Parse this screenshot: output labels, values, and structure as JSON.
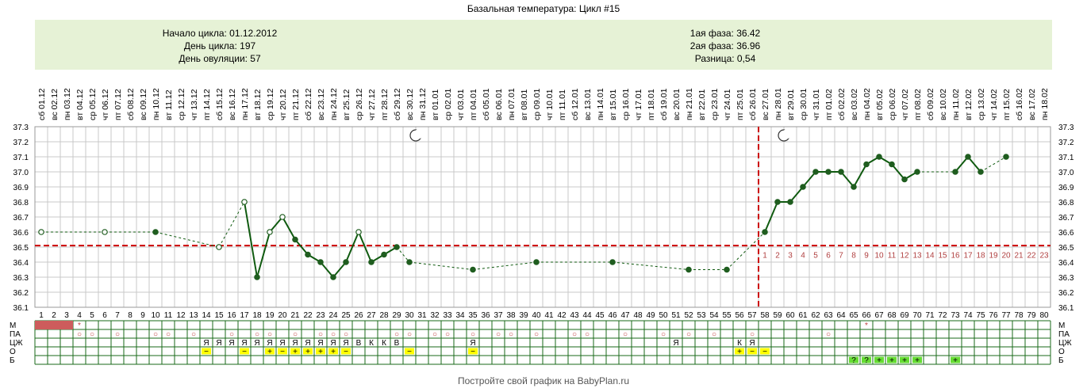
{
  "title": "Базальная температура: Цикл #15",
  "info": {
    "cycle_start": "Начало цикла: 01.12.2012",
    "cycle_day": "День цикла: 197",
    "ovulation_day": "День овуляции: 57",
    "phase1": "1ая фаза: 36.42",
    "phase2": "2ая фаза: 36.96",
    "difference": "Разница: 0,54"
  },
  "footer": "Постройте свой график на BabyPlan.ru",
  "colors": {
    "info_bg": "#e6f2d6",
    "grid": "#c8c8c8",
    "line": "#0f5a0f",
    "marker": "#1f5d1f",
    "coverline": "#cc0000",
    "post_ovulation_day_numbers": "#b04040",
    "menstruation_fill": "#cd5c5c",
    "yellow_cell": "#ffff00",
    "green_cell": "#66dd33",
    "row_border": "#1a6a1a"
  },
  "chart_data": {
    "type": "line",
    "x_days": [
      1,
      80
    ],
    "date_labels": [
      "сб 01.12",
      "вс 02.12",
      "пн 03.12",
      "вт 04.12",
      "ср 05.12",
      "чт 06.12",
      "пт 07.12",
      "сб 08.12",
      "вс 09.12",
      "пн 10.12",
      "вт 11.12",
      "ср 12.12",
      "чт 13.12",
      "пт 14.12",
      "сб 15.12",
      "вс 16.12",
      "пн 17.12",
      "вт 18.12",
      "ср 19.12",
      "чт 20.12",
      "пт 21.12",
      "сб 22.12",
      "вс 23.12",
      "пн 24.12",
      "вт 25.12",
      "ср 26.12",
      "чт 27.12",
      "пт 28.12",
      "сб 29.12",
      "вс 30.12",
      "пн 31.12",
      "вт 01.01",
      "ср 02.01",
      "чт 03.01",
      "пт 04.01",
      "сб 05.01",
      "вс 06.01",
      "пн 07.01",
      "вт 08.01",
      "ср 09.01",
      "чт 10.01",
      "пт 11.01",
      "сб 12.01",
      "вс 13.01",
      "пн 14.01",
      "вт 15.01",
      "ср 16.01",
      "чт 17.01",
      "пт 18.01",
      "сб 19.01",
      "вс 20.01",
      "пн 21.01",
      "вт 22.01",
      "ср 23.01",
      "чт 24.01",
      "пт 25.01",
      "сб 26.01",
      "вс 27.01",
      "пн 28.01",
      "вт 29.01",
      "ср 30.01",
      "чт 31.01",
      "пт 01.02",
      "сб 02.02",
      "вс 03.02",
      "пн 04.02",
      "вт 05.02",
      "ср 06.02",
      "чт 07.02",
      "пт 08.02",
      "сб 09.02",
      "вс 10.02",
      "пн 11.02",
      "вт 12.02",
      "ср 13.02",
      "чт 14.02",
      "пт 15.02",
      "сб 16.02",
      "вс 17.02",
      "пн 18.02"
    ],
    "y_ticks": [
      "36.1",
      "36.2",
      "36.3",
      "36.4",
      "36.5",
      "36.6",
      "36.7",
      "36.8",
      "36.9",
      "37.0",
      "37.1",
      "37.2",
      "37.3"
    ],
    "ylim": [
      36.1,
      37.3
    ],
    "coverline": 36.51,
    "ovulation_day": 57,
    "moon_days": [
      30,
      59
    ],
    "points": [
      {
        "x": 1,
        "y": 36.6,
        "open": true
      },
      {
        "x": 6,
        "y": 36.6,
        "open": true
      },
      {
        "x": 10,
        "y": 36.6,
        "open": false
      },
      {
        "x": 15,
        "y": 36.5,
        "open": true
      },
      {
        "x": 17,
        "y": 36.8,
        "open": true
      },
      {
        "x": 18,
        "y": 36.3,
        "open": false
      },
      {
        "x": 19,
        "y": 36.6,
        "open": true
      },
      {
        "x": 20,
        "y": 36.7,
        "open": true
      },
      {
        "x": 21,
        "y": 36.55,
        "open": false
      },
      {
        "x": 22,
        "y": 36.45,
        "open": false
      },
      {
        "x": 23,
        "y": 36.4,
        "open": false
      },
      {
        "x": 24,
        "y": 36.3,
        "open": false
      },
      {
        "x": 25,
        "y": 36.4,
        "open": false
      },
      {
        "x": 26,
        "y": 36.6,
        "open": true
      },
      {
        "x": 27,
        "y": 36.4,
        "open": false
      },
      {
        "x": 28,
        "y": 36.45,
        "open": false
      },
      {
        "x": 29,
        "y": 36.5,
        "open": false
      },
      {
        "x": 30,
        "y": 36.4,
        "open": false
      },
      {
        "x": 35,
        "y": 36.35,
        "open": false
      },
      {
        "x": 40,
        "y": 36.4,
        "open": false
      },
      {
        "x": 46,
        "y": 36.4,
        "open": false
      },
      {
        "x": 52,
        "y": 36.35,
        "open": false
      },
      {
        "x": 55,
        "y": 36.35,
        "open": false
      },
      {
        "x": 58,
        "y": 36.6,
        "open": false
      },
      {
        "x": 59,
        "y": 36.8,
        "open": false
      },
      {
        "x": 60,
        "y": 36.8,
        "open": false
      },
      {
        "x": 61,
        "y": 36.9,
        "open": false
      },
      {
        "x": 62,
        "y": 37.0,
        "open": false
      },
      {
        "x": 63,
        "y": 37.0,
        "open": false
      },
      {
        "x": 64,
        "y": 37.0,
        "open": false
      },
      {
        "x": 65,
        "y": 36.9,
        "open": false
      },
      {
        "x": 66,
        "y": 37.05,
        "open": false
      },
      {
        "x": 67,
        "y": 37.1,
        "open": false
      },
      {
        "x": 68,
        "y": 37.05,
        "open": false
      },
      {
        "x": 69,
        "y": 36.95,
        "open": false
      },
      {
        "x": 70,
        "y": 37.0,
        "open": false
      },
      {
        "x": 73,
        "y": 37.0,
        "open": false
      },
      {
        "x": 74,
        "y": 37.1,
        "open": false
      },
      {
        "x": 75,
        "y": 37.0,
        "open": false
      },
      {
        "x": 77,
        "y": 37.1,
        "open": false
      }
    ],
    "solid_segments": [
      [
        17,
        18
      ],
      [
        18,
        19
      ],
      [
        19,
        20
      ],
      [
        20,
        21
      ],
      [
        21,
        22
      ],
      [
        22,
        23
      ],
      [
        23,
        24
      ],
      [
        24,
        25
      ],
      [
        25,
        26
      ],
      [
        26,
        27
      ],
      [
        27,
        28
      ],
      [
        28,
        29
      ],
      [
        58,
        59
      ],
      [
        59,
        60
      ],
      [
        60,
        61
      ],
      [
        61,
        62
      ],
      [
        62,
        63
      ],
      [
        63,
        64
      ],
      [
        64,
        65
      ],
      [
        65,
        66
      ],
      [
        66,
        67
      ],
      [
        67,
        68
      ],
      [
        68,
        69
      ],
      [
        69,
        70
      ],
      [
        73,
        74
      ],
      [
        74,
        75
      ]
    ],
    "post_ovulation_day_numbers": [
      "1",
      "2",
      "3",
      "4",
      "5",
      "6",
      "7",
      "8",
      "9",
      "10",
      "11",
      "12",
      "13",
      "14",
      "15",
      "16",
      "17",
      "18",
      "19",
      "20",
      "21",
      "22",
      "23"
    ],
    "indicator_rows": {
      "labels": [
        "М",
        "ПА",
        "ЦЖ",
        "О",
        "Б"
      ],
      "menstruation_days": [
        1,
        2,
        3
      ],
      "cells": [
        {
          "row": 0,
          "day": 4,
          "text": "*",
          "color": "#c04040"
        },
        {
          "row": 0,
          "day": 66,
          "text": "*",
          "color": "#c04040"
        },
        {
          "row": 1,
          "day": 4,
          "text": "○",
          "color": "#c04040"
        },
        {
          "row": 1,
          "day": 5,
          "text": "○",
          "color": "#c04040"
        },
        {
          "row": 1,
          "day": 7,
          "text": "○",
          "color": "#c04040"
        },
        {
          "row": 1,
          "day": 10,
          "text": "○",
          "color": "#c04040"
        },
        {
          "row": 1,
          "day": 11,
          "text": "○",
          "color": "#c04040"
        },
        {
          "row": 1,
          "day": 13,
          "text": "○",
          "color": "#c04040"
        },
        {
          "row": 1,
          "day": 16,
          "text": "○",
          "color": "#c04040"
        },
        {
          "row": 1,
          "day": 18,
          "text": "○",
          "color": "#c04040"
        },
        {
          "row": 1,
          "day": 19,
          "text": "○",
          "color": "#c04040"
        },
        {
          "row": 1,
          "day": 21,
          "text": "○",
          "color": "#c04040"
        },
        {
          "row": 1,
          "day": 23,
          "text": "○",
          "color": "#c04040"
        },
        {
          "row": 1,
          "day": 24,
          "text": "○",
          "color": "#c04040"
        },
        {
          "row": 1,
          "day": 25,
          "text": "○",
          "color": "#c04040"
        },
        {
          "row": 1,
          "day": 29,
          "text": "○",
          "color": "#c04040"
        },
        {
          "row": 1,
          "day": 30,
          "text": "○",
          "color": "#c04040"
        },
        {
          "row": 1,
          "day": 32,
          "text": "○",
          "color": "#c04040"
        },
        {
          "row": 1,
          "day": 33,
          "text": "○",
          "color": "#c04040"
        },
        {
          "row": 1,
          "day": 35,
          "text": "○",
          "color": "#c04040"
        },
        {
          "row": 1,
          "day": 37,
          "text": "○",
          "color": "#c04040"
        },
        {
          "row": 1,
          "day": 38,
          "text": "○",
          "color": "#c04040"
        },
        {
          "row": 1,
          "day": 40,
          "text": "○",
          "color": "#c04040"
        },
        {
          "row": 1,
          "day": 43,
          "text": "○",
          "color": "#c04040"
        },
        {
          "row": 1,
          "day": 44,
          "text": "○",
          "color": "#c04040"
        },
        {
          "row": 1,
          "day": 47,
          "text": "○",
          "color": "#c04040"
        },
        {
          "row": 1,
          "day": 50,
          "text": "○",
          "color": "#c04040"
        },
        {
          "row": 1,
          "day": 52,
          "text": "○",
          "color": "#c04040"
        },
        {
          "row": 1,
          "day": 54,
          "text": "○",
          "color": "#c04040"
        },
        {
          "row": 1,
          "day": 57,
          "text": "○",
          "color": "#c04040"
        },
        {
          "row": 1,
          "day": 63,
          "text": "○",
          "color": "#c04040"
        },
        {
          "row": 2,
          "day": 14,
          "text": "Я"
        },
        {
          "row": 2,
          "day": 15,
          "text": "Я"
        },
        {
          "row": 2,
          "day": 16,
          "text": "Я"
        },
        {
          "row": 2,
          "day": 17,
          "text": "Я"
        },
        {
          "row": 2,
          "day": 18,
          "text": "Я"
        },
        {
          "row": 2,
          "day": 19,
          "text": "Я"
        },
        {
          "row": 2,
          "day": 20,
          "text": "Я"
        },
        {
          "row": 2,
          "day": 21,
          "text": "Я"
        },
        {
          "row": 2,
          "day": 22,
          "text": "Я"
        },
        {
          "row": 2,
          "day": 23,
          "text": "Я"
        },
        {
          "row": 2,
          "day": 24,
          "text": "Я"
        },
        {
          "row": 2,
          "day": 25,
          "text": "Я"
        },
        {
          "row": 2,
          "day": 26,
          "text": "В"
        },
        {
          "row": 2,
          "day": 27,
          "text": "К"
        },
        {
          "row": 2,
          "day": 28,
          "text": "К"
        },
        {
          "row": 2,
          "day": 29,
          "text": "В"
        },
        {
          "row": 2,
          "day": 35,
          "text": "Я"
        },
        {
          "row": 2,
          "day": 51,
          "text": "Я"
        },
        {
          "row": 2,
          "day": 56,
          "text": "К"
        },
        {
          "row": 2,
          "day": 57,
          "text": "Я"
        },
        {
          "row": 3,
          "day": 14,
          "text": "−",
          "fill": "#ffff00"
        },
        {
          "row": 3,
          "day": 17,
          "text": "−",
          "fill": "#ffff00"
        },
        {
          "row": 3,
          "day": 19,
          "text": "+",
          "fill": "#ffff00"
        },
        {
          "row": 3,
          "day": 20,
          "text": "−",
          "fill": "#ffff00"
        },
        {
          "row": 3,
          "day": 21,
          "text": "+",
          "fill": "#ffff00"
        },
        {
          "row": 3,
          "day": 22,
          "text": "+",
          "fill": "#ffff00"
        },
        {
          "row": 3,
          "day": 23,
          "text": "+",
          "fill": "#ffff00"
        },
        {
          "row": 3,
          "day": 24,
          "text": "+",
          "fill": "#ffff00"
        },
        {
          "row": 3,
          "day": 25,
          "text": "−",
          "fill": "#ffff00"
        },
        {
          "row": 3,
          "day": 30,
          "text": "−",
          "fill": "#ffff00"
        },
        {
          "row": 3,
          "day": 35,
          "text": "−",
          "fill": "#ffff00"
        },
        {
          "row": 3,
          "day": 56,
          "text": "+",
          "fill": "#ffff00"
        },
        {
          "row": 3,
          "day": 57,
          "text": "−",
          "fill": "#ffff00"
        },
        {
          "row": 3,
          "day": 58,
          "text": "−",
          "fill": "#ffff00"
        },
        {
          "row": 4,
          "day": 65,
          "text": "?",
          "fill": "#66dd33"
        },
        {
          "row": 4,
          "day": 66,
          "text": "?",
          "fill": "#66dd33"
        },
        {
          "row": 4,
          "day": 67,
          "text": "+",
          "fill": "#66dd33"
        },
        {
          "row": 4,
          "day": 68,
          "text": "+",
          "fill": "#66dd33"
        },
        {
          "row": 4,
          "day": 69,
          "text": "+",
          "fill": "#66dd33"
        },
        {
          "row": 4,
          "day": 70,
          "text": "+",
          "fill": "#66dd33"
        },
        {
          "row": 4,
          "day": 73,
          "text": "+",
          "fill": "#66dd33"
        }
      ]
    }
  }
}
